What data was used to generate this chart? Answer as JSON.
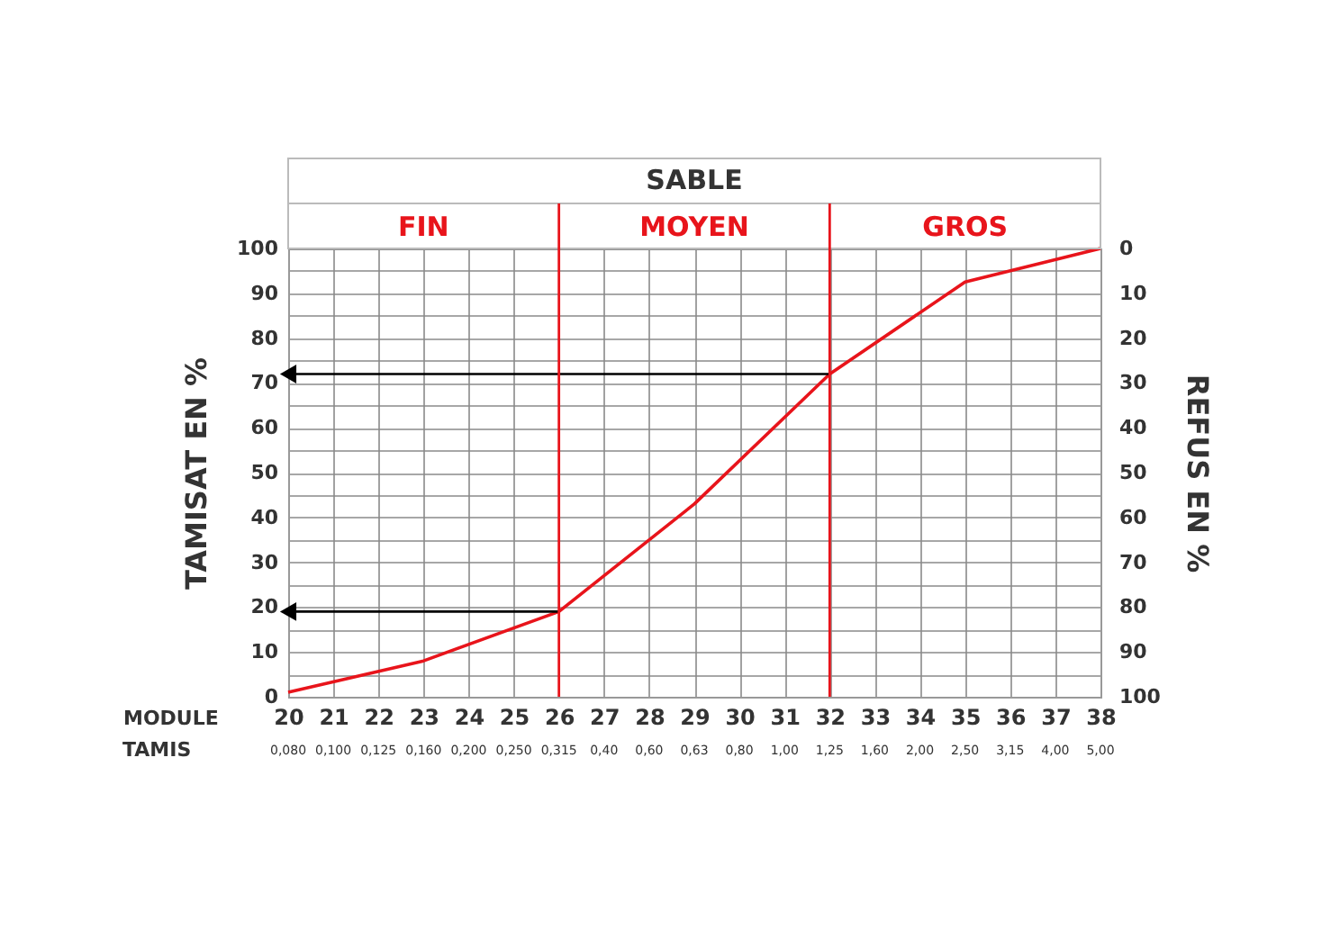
{
  "chart_data": {
    "type": "line",
    "title": "SABLE",
    "xlabel": "MODULE",
    "ylabel": "TAMISAT EN %",
    "y2label": "REFUS EN %",
    "xlim": [
      20,
      38
    ],
    "xticks": [
      20,
      21,
      22,
      23,
      24,
      25,
      26,
      27,
      28,
      29,
      30,
      31,
      32,
      33,
      34,
      35,
      36,
      37,
      38
    ],
    "ylim": [
      0,
      100
    ],
    "yticks": [
      0,
      {
        "value": 5,
        "label": null
      },
      10,
      {
        "value": 15,
        "label": null
      },
      20,
      {
        "value": 25,
        "label": null
      },
      30,
      {
        "value": 35,
        "label": null
      },
      40,
      {
        "value": 45,
        "label": null
      },
      50,
      {
        "value": 55,
        "label": null
      },
      60,
      {
        "value": 65,
        "label": null
      },
      70,
      {
        "value": 75,
        "label": null
      },
      80,
      {
        "value": 85,
        "label": null
      },
      90,
      {
        "value": 95,
        "label": null
      },
      100
    ],
    "y2lim": [
      100,
      0
    ],
    "y2ticks": [
      0,
      10,
      20,
      30,
      40,
      50,
      60,
      70,
      80,
      90,
      100
    ],
    "grid": true,
    "annotations": [
      "FIN",
      "MOYEN",
      "GROS",
      "TAMIS",
      "0,080",
      "0,100",
      "0,125",
      "0,160",
      "0,200",
      "0,250",
      "0,315",
      "0,40",
      "0,60",
      "0,63",
      "0,80",
      "1,00",
      "1,25",
      "1,60",
      "2,00",
      "2,50",
      "3,15",
      "4,00",
      "5,00"
    ],
    "ref_lines": [
      {
        "axis": "x",
        "value": 26,
        "color": "#e8141b"
      },
      {
        "axis": "x",
        "value": 32,
        "color": "#e8141b"
      }
    ],
    "series": [
      {
        "color": "#e8141b",
        "x": [
          20,
          23,
          26,
          29,
          32,
          35,
          38
        ],
        "values": [
          1,
          8,
          19,
          43,
          72,
          92.5,
          100
        ]
      },
      {
        "type": "line",
        "color": "#000000",
        "x": [
          26,
          20
        ],
        "values": [
          19,
          19
        ],
        "marker": "triangle"
      },
      {
        "type": "line",
        "color": "#000000",
        "x": [
          32,
          20
        ],
        "values": [
          72,
          72
        ],
        "marker": "triangle"
      }
    ]
  }
}
